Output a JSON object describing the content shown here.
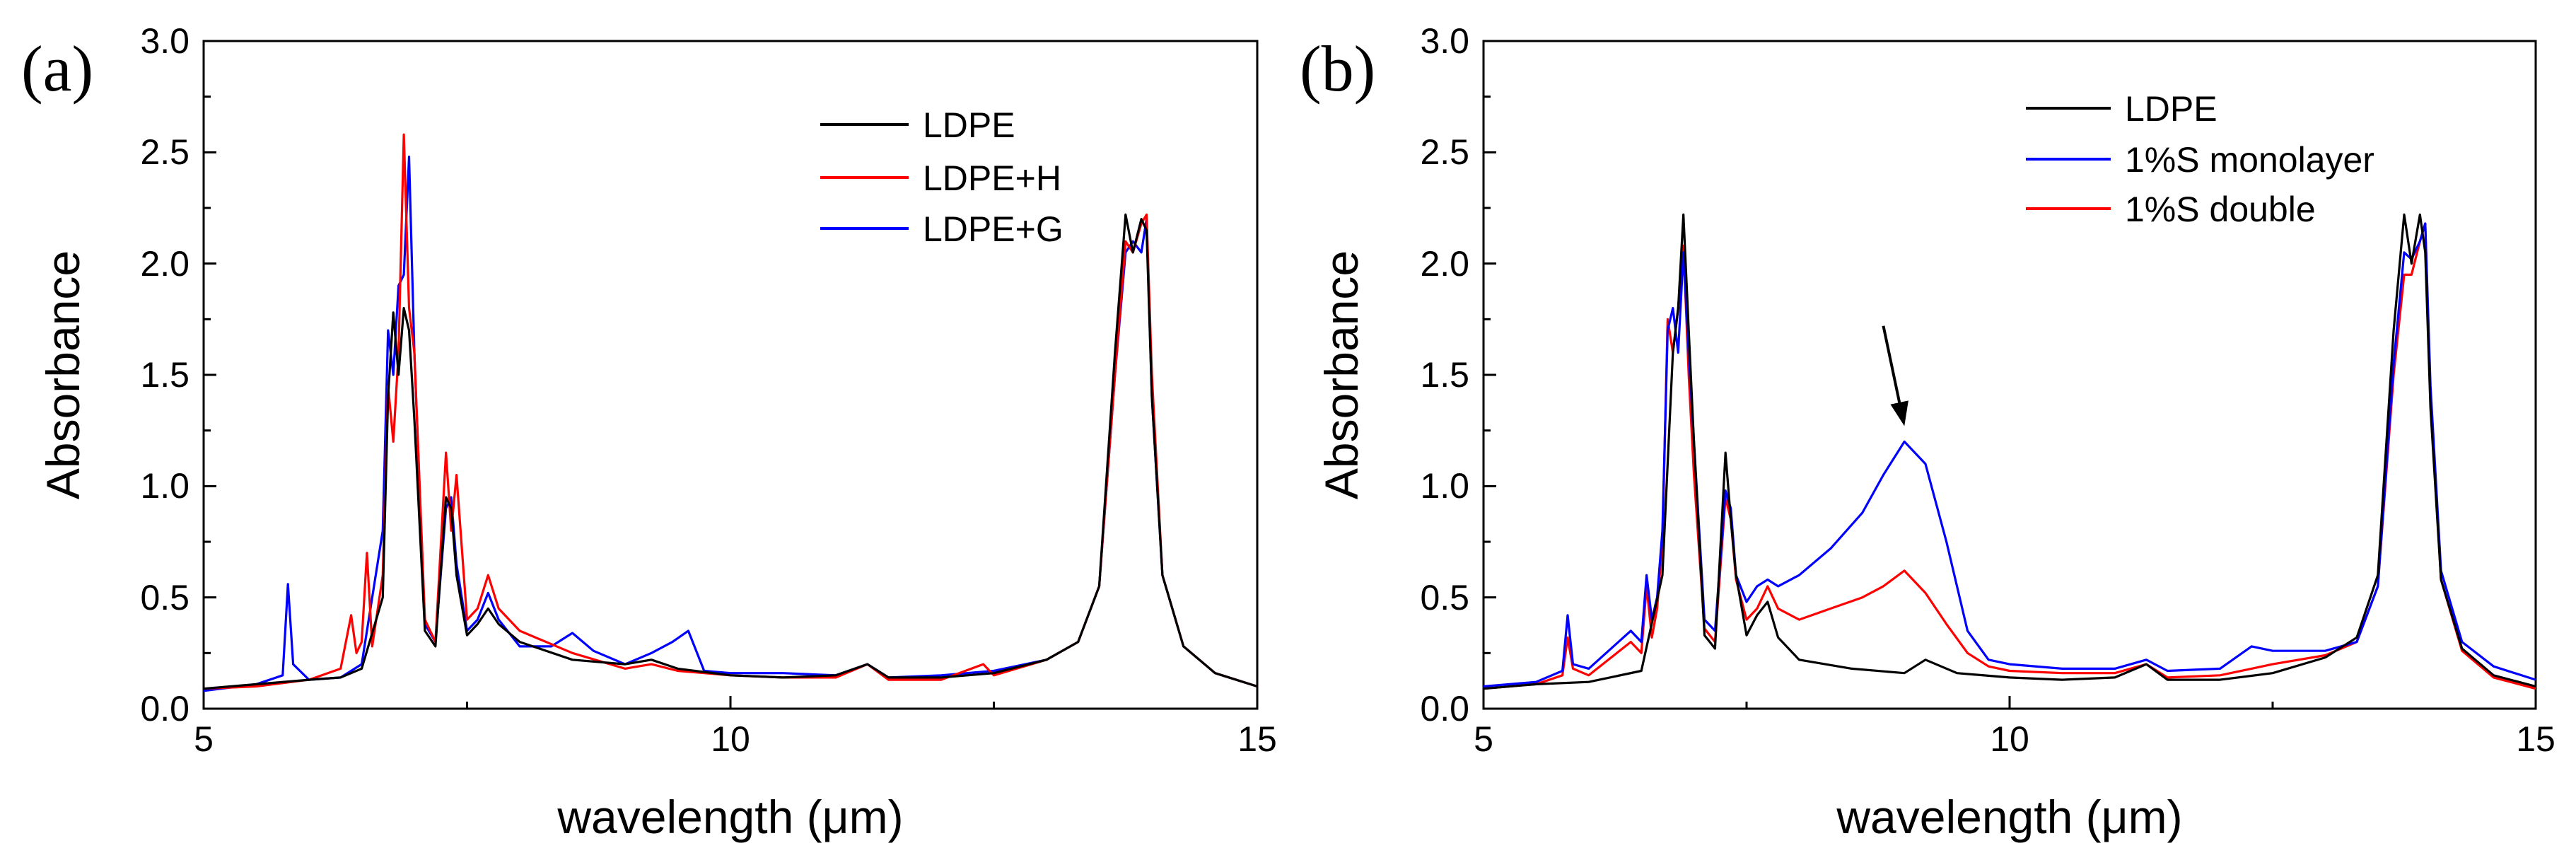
{
  "chart_data": [
    {
      "type": "line",
      "panel_label": "(a)",
      "title": "",
      "xlabel": "wavelength (μm)",
      "ylabel": "Absorbance",
      "xlim": [
        5,
        15
      ],
      "ylim": [
        0.0,
        3.0
      ],
      "xticks": [
        5,
        10,
        15
      ],
      "xtick_labels": [
        "5",
        "10",
        "15"
      ],
      "yticks": [
        0.0,
        0.5,
        1.0,
        1.5,
        2.0,
        2.5,
        3.0
      ],
      "ytick_labels": [
        "0.0",
        "0.5",
        "1.0",
        "1.5",
        "2.0",
        "2.5",
        "3.0"
      ],
      "grid": false,
      "legend_position": "top-right",
      "series": [
        {
          "name": "LDPE",
          "color": "#000000",
          "x": [
            5.0,
            5.5,
            6.0,
            6.3,
            6.5,
            6.7,
            6.75,
            6.8,
            6.85,
            6.9,
            6.95,
            7.0,
            7.1,
            7.2,
            7.3,
            7.35,
            7.4,
            7.5,
            7.6,
            7.7,
            7.8,
            8.0,
            8.5,
            9.0,
            9.25,
            9.5,
            10.0,
            10.5,
            11.0,
            11.3,
            11.5,
            12.0,
            12.5,
            13.0,
            13.3,
            13.5,
            13.65,
            13.75,
            13.82,
            13.9,
            13.95,
            14.0,
            14.1,
            14.3,
            14.6,
            15.0
          ],
          "values": [
            0.09,
            0.11,
            0.13,
            0.14,
            0.18,
            0.5,
            1.4,
            1.78,
            1.5,
            1.8,
            1.7,
            1.3,
            0.35,
            0.28,
            0.95,
            0.9,
            0.6,
            0.33,
            0.38,
            0.45,
            0.38,
            0.3,
            0.22,
            0.2,
            0.22,
            0.18,
            0.15,
            0.14,
            0.15,
            0.2,
            0.14,
            0.14,
            0.16,
            0.22,
            0.3,
            0.55,
            1.6,
            2.22,
            2.05,
            2.2,
            2.15,
            1.4,
            0.6,
            0.28,
            0.16,
            0.1
          ]
        },
        {
          "name": "LDPE+H",
          "color": "#ff0000",
          "x": [
            5.0,
            5.5,
            6.0,
            6.3,
            6.4,
            6.45,
            6.5,
            6.55,
            6.6,
            6.7,
            6.75,
            6.8,
            6.85,
            6.9,
            6.95,
            7.0,
            7.1,
            7.2,
            7.3,
            7.35,
            7.4,
            7.5,
            7.6,
            7.7,
            7.8,
            8.0,
            8.5,
            9.0,
            9.25,
            9.5,
            10.0,
            10.5,
            11.0,
            11.3,
            11.5,
            12.0,
            12.4,
            12.5,
            13.0,
            13.3,
            13.5,
            13.65,
            13.75,
            13.82,
            13.9,
            13.95,
            14.0,
            14.1,
            14.3,
            14.6,
            15.0
          ],
          "values": [
            0.09,
            0.1,
            0.13,
            0.18,
            0.42,
            0.25,
            0.3,
            0.7,
            0.28,
            0.6,
            1.45,
            1.2,
            1.6,
            2.58,
            1.8,
            1.6,
            0.4,
            0.3,
            1.15,
            0.8,
            1.05,
            0.4,
            0.45,
            0.6,
            0.45,
            0.35,
            0.25,
            0.18,
            0.2,
            0.17,
            0.15,
            0.14,
            0.14,
            0.2,
            0.13,
            0.13,
            0.2,
            0.15,
            0.22,
            0.3,
            0.55,
            1.5,
            2.1,
            2.05,
            2.18,
            2.22,
            1.5,
            0.6,
            0.28,
            0.16,
            0.1
          ]
        },
        {
          "name": "LDPE+G",
          "color": "#0000ff",
          "x": [
            5.0,
            5.5,
            5.75,
            5.8,
            5.85,
            6.0,
            6.3,
            6.5,
            6.7,
            6.75,
            6.8,
            6.85,
            6.9,
            6.95,
            7.0,
            7.1,
            7.2,
            7.3,
            7.35,
            7.4,
            7.5,
            7.6,
            7.7,
            7.8,
            8.0,
            8.3,
            8.5,
            8.7,
            9.0,
            9.25,
            9.45,
            9.6,
            9.75,
            10.0,
            10.5,
            11.0,
            11.3,
            11.5,
            12.0,
            12.5,
            13.0,
            13.3,
            13.5,
            13.65,
            13.75,
            13.82,
            13.9,
            13.95,
            14.0,
            14.1,
            14.3,
            14.6,
            15.0
          ],
          "values": [
            0.08,
            0.11,
            0.15,
            0.56,
            0.2,
            0.13,
            0.14,
            0.2,
            0.8,
            1.7,
            1.5,
            1.9,
            1.95,
            2.48,
            1.6,
            0.38,
            0.3,
            0.9,
            0.95,
            0.65,
            0.35,
            0.4,
            0.52,
            0.4,
            0.28,
            0.28,
            0.34,
            0.26,
            0.2,
            0.25,
            0.3,
            0.35,
            0.17,
            0.16,
            0.16,
            0.15,
            0.2,
            0.14,
            0.15,
            0.17,
            0.22,
            0.3,
            0.55,
            1.5,
            2.05,
            2.1,
            2.05,
            2.2,
            1.4,
            0.6,
            0.28,
            0.16,
            0.1
          ]
        }
      ]
    },
    {
      "type": "line",
      "panel_label": "(b)",
      "title": "",
      "xlabel": "wavelength (μm)",
      "ylabel": "Absorbance",
      "xlim": [
        5,
        15
      ],
      "ylim": [
        0.0,
        3.0
      ],
      "xticks": [
        5,
        10,
        15
      ],
      "xtick_labels": [
        "5",
        "10",
        "15"
      ],
      "yticks": [
        0.0,
        0.5,
        1.0,
        1.5,
        2.0,
        2.5,
        3.0
      ],
      "ytick_labels": [
        "0.0",
        "0.5",
        "1.0",
        "1.5",
        "2.0",
        "2.5",
        "3.0"
      ],
      "grid": false,
      "legend_position": "top-right",
      "annotation": {
        "type": "arrow",
        "target_x": 9.0,
        "target_y": 1.27,
        "from_x": 8.8,
        "from_y": 1.72
      },
      "series": [
        {
          "name": "LDPE",
          "color": "#000000",
          "x": [
            5.0,
            5.5,
            6.0,
            6.5,
            6.7,
            6.8,
            6.85,
            6.9,
            6.95,
            7.0,
            7.1,
            7.2,
            7.3,
            7.35,
            7.4,
            7.5,
            7.6,
            7.7,
            7.8,
            8.0,
            8.5,
            9.0,
            9.2,
            9.5,
            10.0,
            10.5,
            11.0,
            11.3,
            11.5,
            12.0,
            12.5,
            13.0,
            13.3,
            13.5,
            13.65,
            13.75,
            13.82,
            13.9,
            13.95,
            14.0,
            14.1,
            14.3,
            14.6,
            15.0
          ],
          "values": [
            0.09,
            0.11,
            0.12,
            0.17,
            0.6,
            1.6,
            1.8,
            2.22,
            1.7,
            1.2,
            0.33,
            0.27,
            1.15,
            0.85,
            0.6,
            0.33,
            0.42,
            0.48,
            0.32,
            0.22,
            0.18,
            0.16,
            0.22,
            0.16,
            0.14,
            0.13,
            0.14,
            0.2,
            0.13,
            0.13,
            0.16,
            0.23,
            0.32,
            0.6,
            1.7,
            2.22,
            2.0,
            2.22,
            2.05,
            1.35,
            0.58,
            0.27,
            0.15,
            0.1
          ]
        },
        {
          "name": "1%S monolayer",
          "color": "#0000ff",
          "x": [
            5.0,
            5.5,
            5.75,
            5.8,
            5.85,
            6.0,
            6.4,
            6.5,
            6.55,
            6.6,
            6.65,
            6.7,
            6.75,
            6.8,
            6.85,
            6.9,
            6.95,
            7.0,
            7.1,
            7.2,
            7.3,
            7.35,
            7.4,
            7.5,
            7.6,
            7.7,
            7.8,
            8.0,
            8.3,
            8.6,
            8.8,
            9.0,
            9.2,
            9.4,
            9.6,
            9.8,
            10.0,
            10.5,
            11.0,
            11.3,
            11.5,
            12.0,
            12.3,
            12.5,
            13.0,
            13.3,
            13.5,
            13.65,
            13.75,
            13.82,
            13.9,
            13.95,
            14.0,
            14.1,
            14.3,
            14.6,
            15.0
          ],
          "values": [
            0.1,
            0.12,
            0.17,
            0.42,
            0.2,
            0.18,
            0.35,
            0.3,
            0.6,
            0.4,
            0.5,
            0.8,
            1.7,
            1.8,
            1.6,
            2.05,
            1.6,
            1.2,
            0.4,
            0.35,
            0.98,
            0.9,
            0.6,
            0.48,
            0.55,
            0.58,
            0.55,
            0.6,
            0.72,
            0.88,
            1.05,
            1.2,
            1.1,
            0.75,
            0.35,
            0.22,
            0.2,
            0.18,
            0.18,
            0.22,
            0.17,
            0.18,
            0.28,
            0.26,
            0.26,
            0.3,
            0.55,
            1.55,
            2.05,
            2.02,
            2.1,
            2.18,
            1.45,
            0.62,
            0.3,
            0.19,
            0.13
          ]
        },
        {
          "name": "1%S double",
          "color": "#ff0000",
          "x": [
            5.0,
            5.5,
            5.75,
            5.8,
            5.85,
            6.0,
            6.4,
            6.5,
            6.55,
            6.6,
            6.65,
            6.7,
            6.75,
            6.8,
            6.85,
            6.9,
            6.95,
            7.0,
            7.1,
            7.2,
            7.3,
            7.35,
            7.4,
            7.5,
            7.6,
            7.7,
            7.8,
            8.0,
            8.3,
            8.6,
            8.8,
            9.0,
            9.2,
            9.4,
            9.6,
            9.8,
            10.0,
            10.5,
            11.0,
            11.3,
            11.5,
            12.0,
            12.5,
            13.0,
            13.3,
            13.5,
            13.65,
            13.75,
            13.82,
            13.9,
            13.95,
            14.0,
            14.1,
            14.3,
            14.6,
            15.0
          ],
          "values": [
            0.09,
            0.11,
            0.15,
            0.32,
            0.18,
            0.15,
            0.3,
            0.25,
            0.55,
            0.32,
            0.45,
            0.75,
            1.75,
            1.6,
            1.8,
            2.08,
            1.5,
            1.05,
            0.36,
            0.3,
            0.95,
            0.85,
            0.58,
            0.4,
            0.45,
            0.55,
            0.45,
            0.4,
            0.45,
            0.5,
            0.55,
            0.62,
            0.52,
            0.38,
            0.25,
            0.19,
            0.17,
            0.16,
            0.16,
            0.2,
            0.14,
            0.15,
            0.2,
            0.24,
            0.3,
            0.55,
            1.5,
            1.95,
            1.95,
            2.1,
            2.18,
            1.4,
            0.58,
            0.26,
            0.14,
            0.09
          ]
        }
      ]
    }
  ]
}
